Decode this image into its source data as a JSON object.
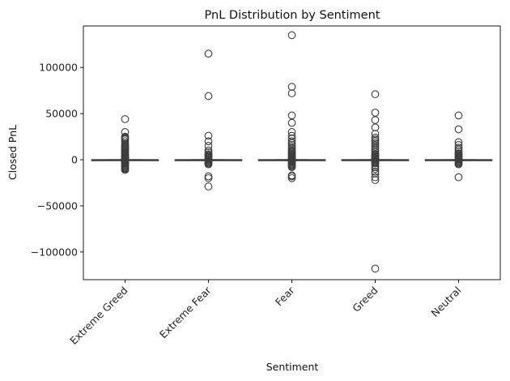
{
  "chart_data": {
    "type": "box",
    "title": "PnL Distribution by Sentiment",
    "xlabel": "Sentiment",
    "ylabel": "Closed PnL",
    "ylim": [
      -130000,
      145000
    ],
    "yticks": [
      -100000,
      -50000,
      0,
      50000,
      100000
    ],
    "ytick_labels": [
      "−100000",
      "−50000",
      "0",
      "50000",
      "100000"
    ],
    "categories": [
      "Extreme Greed",
      "Extreme Fear",
      "Fear",
      "Greed",
      "Neutral"
    ],
    "grid": false,
    "box_color": "#3d3d3d",
    "boxes": [
      {
        "category": "Extreme Greed",
        "q1": -5,
        "median": 0,
        "q3": 20,
        "whisker_low": -60,
        "whisker_high": 90,
        "outliers": [
          44000,
          30000,
          25000,
          24000,
          23000,
          22000,
          20000,
          18000,
          16000,
          15000,
          14000,
          13000,
          12000,
          11000,
          10000,
          9000,
          8000,
          7000,
          6000,
          5000,
          4500,
          4000,
          3500,
          3000,
          2500,
          2000,
          1500,
          1000,
          800,
          600,
          400,
          -400,
          -600,
          -800,
          -1000,
          -1500,
          -2000,
          -2500,
          -3000,
          -3500,
          -4000,
          -5000,
          -6000,
          -7000,
          -8000,
          -9000,
          -10000,
          -11000
        ]
      },
      {
        "category": "Extreme Fear",
        "q1": -5,
        "median": 0,
        "q3": 15,
        "whisker_low": -50,
        "whisker_high": 70,
        "outliers": [
          115000,
          69000,
          26000,
          20000,
          15000,
          10000,
          8000,
          6000,
          5000,
          4000,
          3000,
          2000,
          1000,
          500,
          -500,
          -1000,
          -2000,
          -3000,
          -4000,
          -5000,
          -18000,
          -20000,
          -29000
        ]
      },
      {
        "category": "Fear",
        "q1": -5,
        "median": 0,
        "q3": 20,
        "whisker_low": -60,
        "whisker_high": 90,
        "outliers": [
          135000,
          79000,
          72000,
          48000,
          40000,
          30000,
          26000,
          23000,
          20000,
          18000,
          16000,
          14000,
          12000,
          10000,
          9000,
          8000,
          7000,
          6000,
          5000,
          4000,
          3000,
          2000,
          1500,
          1000,
          500,
          -500,
          -1000,
          -1500,
          -2000,
          -3000,
          -4000,
          -5000,
          -6000,
          -7000,
          -8000,
          -17000,
          -18000,
          -20000
        ]
      },
      {
        "category": "Greed",
        "q1": -5,
        "median": 0,
        "q3": 20,
        "whisker_low": -60,
        "whisker_high": 90,
        "outliers": [
          71000,
          51000,
          43000,
          35000,
          28000,
          24000,
          22000,
          20000,
          18000,
          16000,
          14000,
          12000,
          10000,
          8000,
          6000,
          5000,
          4000,
          3000,
          2000,
          1500,
          1000,
          500,
          -500,
          -1000,
          -2000,
          -3000,
          -4000,
          -6000,
          -8000,
          -10000,
          -13000,
          -15000,
          -19000,
          -22000,
          -118000
        ]
      },
      {
        "category": "Neutral",
        "q1": -5,
        "median": 0,
        "q3": 15,
        "whisker_low": -50,
        "whisker_high": 70,
        "outliers": [
          48000,
          33000,
          19000,
          16000,
          13000,
          11000,
          9000,
          7000,
          6000,
          5000,
          4000,
          3000,
          2000,
          1000,
          500,
          -500,
          -1000,
          -2000,
          -3000,
          -4000,
          -5000,
          -19000
        ]
      }
    ]
  }
}
